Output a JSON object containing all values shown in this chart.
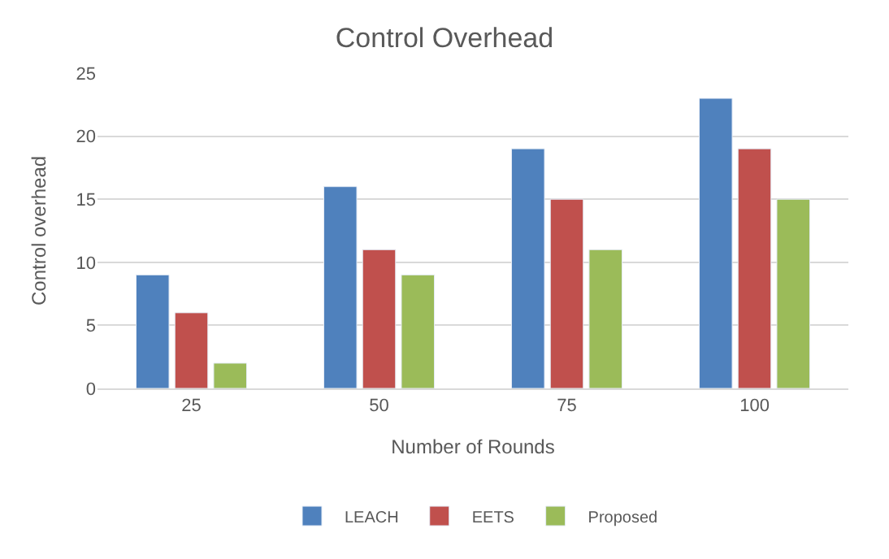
{
  "chart_data": {
    "type": "bar",
    "title": "Control Overhead",
    "xlabel": "Number of Rounds",
    "ylabel": "Control overhead",
    "categories": [
      "25",
      "50",
      "75",
      "100"
    ],
    "series": [
      {
        "name": "LEACH",
        "color": "#4f81bd",
        "values": [
          9,
          16,
          19,
          23
        ]
      },
      {
        "name": "EETS",
        "color": "#c0504d",
        "values": [
          6,
          11,
          15,
          19
        ]
      },
      {
        "name": "Proposed",
        "color": "#9bbb59",
        "values": [
          2,
          9,
          11,
          15
        ]
      }
    ],
    "ylim": [
      0,
      25
    ],
    "yticks": [
      0,
      5,
      10,
      15,
      20,
      25
    ],
    "grid": "y",
    "legend": "bottom"
  }
}
